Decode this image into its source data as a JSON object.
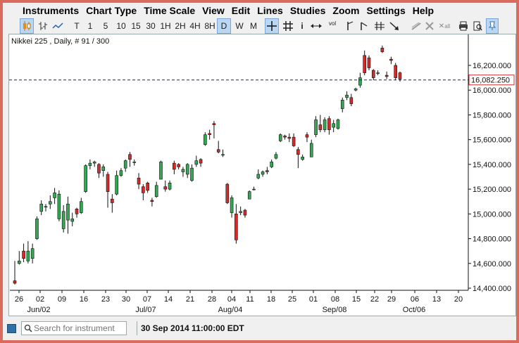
{
  "menu": [
    "Instruments",
    "Chart Type",
    "Time Scale",
    "View",
    "Edit",
    "Lines",
    "Studies",
    "Zoom",
    "Settings",
    "Help"
  ],
  "toolbar": {
    "timeframes": [
      "T",
      "1",
      "5",
      "10",
      "15",
      "30",
      "1H",
      "2H",
      "4H",
      "8H",
      "D",
      "W",
      "M"
    ],
    "selected_timeframe": "D",
    "info_label": "i",
    "vol_label": "vol",
    "all_label": "all"
  },
  "chart": {
    "instrument_label": "Nikkei 225 , Daily, # 91 / 300",
    "current_price_label": "16,082.250",
    "y_tick_labels": [
      "16,200.000",
      "16,000.000",
      "15,800.000",
      "15,600.000",
      "15,400.000",
      "15,200.000",
      "15,000.000",
      "14,800.000",
      "14,600.000",
      "14,400.000"
    ],
    "x_day_labels": [
      "26",
      "02",
      "09",
      "16",
      "23",
      "30",
      "07",
      "14",
      "21",
      "28",
      "04",
      "11",
      "18",
      "25",
      "01",
      "08",
      "15",
      "22",
      "29",
      "06",
      "13",
      "20"
    ],
    "x_month_labels": [
      "Jun/02",
      "Jul/07",
      "Aug/04",
      "Sep/08",
      "Oct/06"
    ],
    "colors": {
      "up": "#33a853",
      "down": "#d12c2c",
      "price_line": "#1a237e"
    }
  },
  "chart_data": {
    "type": "candlestick",
    "title": "Nikkei 225 , Daily, # 91 / 300",
    "ylim": [
      14350,
      16400
    ],
    "last_price": 16082.25,
    "candles": [
      [
        14460,
        14440,
        14620,
        14430
      ],
      [
        14600,
        14620,
        14700,
        14590
      ],
      [
        14700,
        14640,
        14760,
        14610
      ],
      [
        14620,
        14700,
        14780,
        14600
      ],
      [
        14640,
        14720,
        14760,
        14600
      ],
      [
        14800,
        14960,
        14980,
        14790
      ],
      [
        15020,
        15080,
        15110,
        14990
      ],
      [
        15060,
        15060,
        15080,
        15020
      ],
      [
        15080,
        15100,
        15150,
        15040
      ],
      [
        15130,
        15170,
        15210,
        15080
      ],
      [
        14960,
        15160,
        15190,
        14940
      ],
      [
        14880,
        15020,
        15070,
        14850
      ],
      [
        14950,
        15080,
        15140,
        14840
      ],
      [
        14940,
        14960,
        15010,
        14900
      ],
      [
        15040,
        15000,
        15050,
        14970
      ],
      [
        15010,
        15100,
        15130,
        15000
      ],
      [
        15180,
        15390,
        15400,
        15170
      ],
      [
        15390,
        15410,
        15440,
        15360
      ],
      [
        15410,
        15420,
        15430,
        15380
      ],
      [
        15400,
        15330,
        15410,
        15290
      ],
      [
        15350,
        15380,
        15400,
        15300
      ],
      [
        15320,
        15180,
        15340,
        15050
      ],
      [
        15120,
        15090,
        15160,
        15010
      ],
      [
        15160,
        15310,
        15350,
        15150
      ],
      [
        15310,
        15350,
        15370,
        15300
      ],
      [
        15370,
        15430,
        15440,
        15340
      ],
      [
        15480,
        15440,
        15500,
        15380
      ],
      [
        15420,
        15420,
        15440,
        15390
      ],
      [
        15290,
        15240,
        15330,
        15200
      ],
      [
        15220,
        15170,
        15240,
        15110
      ],
      [
        15250,
        15190,
        15260,
        15170
      ],
      [
        15110,
        15100,
        15130,
        15060
      ],
      [
        15140,
        15230,
        15260,
        15130
      ],
      [
        15280,
        15420,
        15430,
        15280
      ],
      [
        15220,
        15200,
        15270,
        15180
      ],
      [
        15200,
        15250,
        15270,
        15190
      ],
      [
        15410,
        15360,
        15430,
        15320
      ],
      [
        15400,
        15380,
        15410,
        15360
      ],
      [
        15340,
        15360,
        15380,
        15300
      ],
      [
        15320,
        15400,
        15410,
        15290
      ],
      [
        15270,
        15370,
        15400,
        15260
      ],
      [
        15400,
        15430,
        15470,
        15380
      ],
      [
        15440,
        15410,
        15450,
        15380
      ],
      [
        15560,
        15640,
        15660,
        15550
      ],
      [
        15650,
        15640,
        15680,
        15600
      ],
      [
        15730,
        15720,
        15750,
        15610
      ],
      [
        15520,
        15500,
        15590,
        15490
      ],
      [
        15480,
        15480,
        15520,
        15460
      ],
      [
        15240,
        15090,
        15250,
        15080
      ],
      [
        15010,
        15130,
        15150,
        14970
      ],
      [
        15000,
        14790,
        15080,
        14760
      ],
      [
        15010,
        15020,
        15060,
        14990
      ],
      [
        15030,
        14990,
        15040,
        14970
      ],
      [
        15120,
        15180,
        15190,
        15120
      ],
      [
        15200,
        15200,
        15220,
        15190
      ],
      [
        15290,
        15320,
        15360,
        15280
      ],
      [
        15320,
        15340,
        15350,
        15300
      ],
      [
        15350,
        15340,
        15380,
        15320
      ],
      [
        15380,
        15420,
        15440,
        15370
      ],
      [
        15450,
        15480,
        15500,
        15440
      ],
      [
        15590,
        15640,
        15650,
        15580
      ],
      [
        15630,
        15620,
        15640,
        15600
      ],
      [
        15620,
        15610,
        15650,
        15580
      ],
      [
        15620,
        15550,
        15650,
        15540
      ],
      [
        15520,
        15480,
        15540,
        15370
      ],
      [
        15440,
        15460,
        15480,
        15430
      ],
      [
        15640,
        15620,
        15660,
        15580
      ],
      [
        15460,
        15570,
        15600,
        15460
      ],
      [
        15640,
        15760,
        15790,
        15620
      ],
      [
        15720,
        15680,
        15800,
        15660
      ],
      [
        15680,
        15760,
        15780,
        15660
      ],
      [
        15770,
        15680,
        15790,
        15640
      ],
      [
        15700,
        15730,
        15760,
        15660
      ],
      [
        15690,
        15760,
        15770,
        15680
      ],
      [
        15850,
        15920,
        15940,
        15820
      ],
      [
        15940,
        15960,
        15990,
        15920
      ],
      [
        15940,
        15890,
        15970,
        15870
      ],
      [
        16000,
        16010,
        16020,
        15990
      ],
      [
        16040,
        16100,
        16140,
        16020
      ],
      [
        16280,
        16140,
        16320,
        16120
      ],
      [
        16260,
        16180,
        16280,
        16160
      ],
      [
        16160,
        16100,
        16170,
        16080
      ],
      [
        16140,
        16140,
        16160,
        16120
      ],
      [
        16340,
        16310,
        16360,
        16300
      ],
      [
        16120,
        16110,
        16150,
        16090
      ],
      [
        16250,
        16240,
        16270,
        16210
      ],
      [
        16200,
        16100,
        16220,
        16080
      ],
      [
        16140,
        16090,
        16150,
        16070
      ]
    ]
  }
}
